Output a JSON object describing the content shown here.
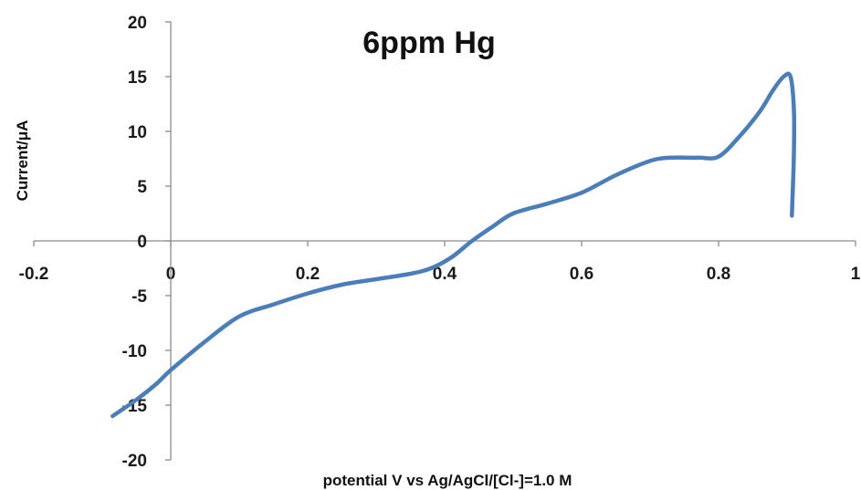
{
  "chart_data": {
    "type": "line",
    "title": "6ppm Hg",
    "xlabel": "potential V vs Ag/AgCl/[Cl-]=1.0  M",
    "ylabel": "Current/μA",
    "xlim": [
      -0.2,
      1
    ],
    "ylim": [
      -20,
      20
    ],
    "x_ticks": [
      "-0.2",
      "0",
      "0.2",
      "0.4",
      "0.6",
      "0.8",
      "1"
    ],
    "y_ticks": [
      "20",
      "15",
      "10",
      "5",
      "0",
      "-5",
      "-10",
      "-15",
      "-20"
    ],
    "grid": false,
    "legend": "none",
    "series": [
      {
        "color": "#4a7ebb",
        "x": [
          -0.085,
          -0.05,
          -0.02,
          0.0,
          0.05,
          0.1,
          0.15,
          0.2,
          0.25,
          0.3,
          0.35,
          0.38,
          0.41,
          0.44,
          0.47,
          0.5,
          0.55,
          0.6,
          0.65,
          0.7,
          0.73,
          0.77,
          0.8,
          0.83,
          0.86,
          0.88,
          0.895,
          0.905,
          0.91,
          0.91,
          0.908,
          0.907
        ],
        "y": [
          -16,
          -14.5,
          -13,
          -11.8,
          -9.2,
          -6.9,
          -5.8,
          -4.8,
          -4.0,
          -3.5,
          -3.0,
          -2.5,
          -1.5,
          0.0,
          1.3,
          2.5,
          3.4,
          4.4,
          6.0,
          7.3,
          7.6,
          7.6,
          7.7,
          9.5,
          11.8,
          13.8,
          15.0,
          15.0,
          12.0,
          8.0,
          4.0,
          2.3
        ]
      }
    ]
  }
}
